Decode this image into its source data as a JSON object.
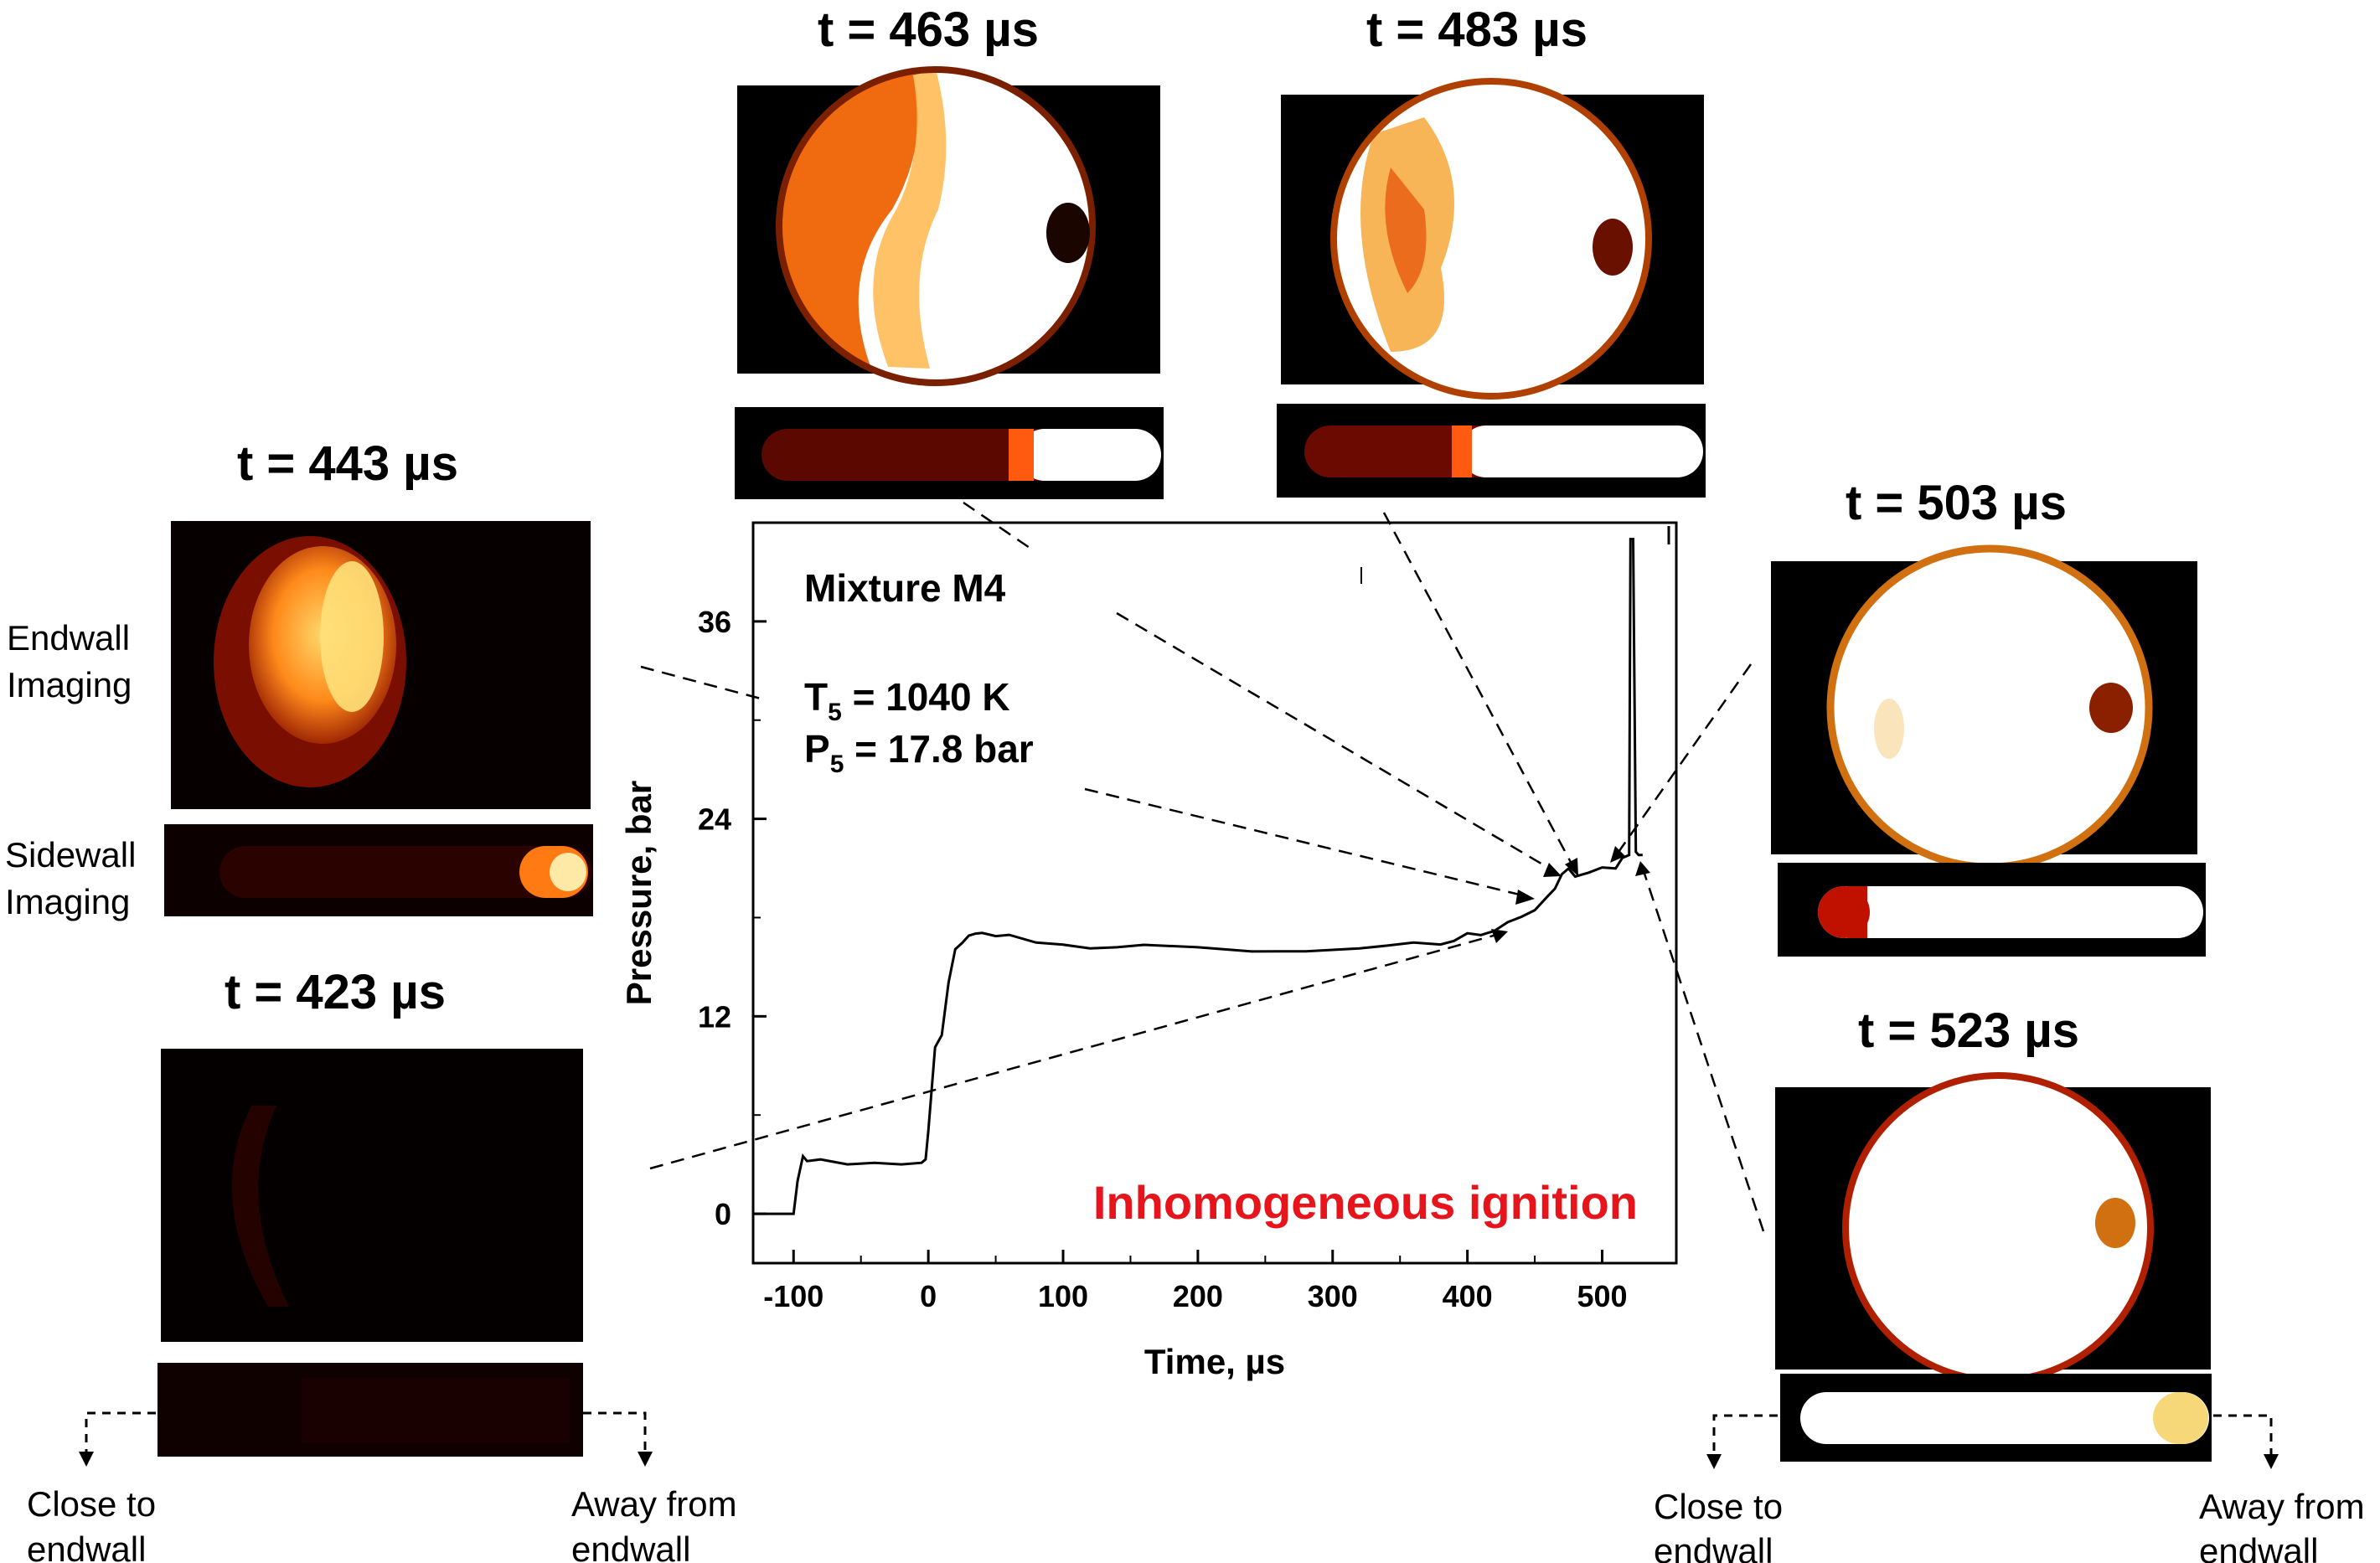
{
  "figure": {
    "panel_labels": {
      "endwall": "Endwall\nImaging",
      "sidewall": "Sidewall\nImaging"
    },
    "bottom_labels": {
      "close": "Close to\nendwall",
      "away": "Away from\nendwall"
    },
    "frames": [
      {
        "time_label": "t = 423 µs",
        "side_front_fraction": 0.0,
        "side_intensity": 0.05,
        "end_intensity": 0.04
      },
      {
        "time_label": "t = 443 µs",
        "side_front_fraction": 0.94,
        "side_intensity": 0.6,
        "end_intensity": 0.6
      },
      {
        "time_label": "t = 463 µs",
        "side_front_fraction": 0.64,
        "side_intensity": 1.0,
        "end_intensity": 0.85
      },
      {
        "time_label": "t = 483 µs",
        "side_front_fraction": 0.4,
        "side_intensity": 1.0,
        "end_intensity": 0.95
      },
      {
        "time_label": "t = 503 µs",
        "side_front_fraction": 0.12,
        "side_intensity": 1.0,
        "end_intensity": 1.0
      },
      {
        "time_label": "t = 523 µs",
        "side_front_fraction": 0.0,
        "side_intensity": 1.0,
        "end_intensity": 1.0
      }
    ]
  },
  "chart_data": {
    "type": "line",
    "title": "",
    "xlabel": "Time, µs",
    "ylabel": "Pressure, bar",
    "xlim": [
      -130,
      555
    ],
    "ylim": [
      -3,
      42
    ],
    "xticks": [
      -100,
      0,
      100,
      200,
      300,
      400,
      500
    ],
    "yticks": [
      0,
      12,
      24,
      36
    ],
    "grid": false,
    "annotations": {
      "mixture": "Mixture M4",
      "t5": "T5 = 1040 K",
      "p5": "P5 = 17.8 bar",
      "result": "Inhomogeneous ignition",
      "result_color": "#e8141b"
    },
    "series": [
      {
        "x": [
          -130,
          -100,
          -97,
          -93,
          -90,
          -80,
          -60,
          -40,
          -20,
          -5,
          -2,
          0,
          5,
          10,
          15,
          20,
          25,
          30,
          35,
          40,
          50,
          60,
          80,
          100,
          120,
          140,
          160,
          200,
          240,
          280,
          320,
          340,
          360,
          380,
          390,
          400,
          410,
          420,
          430,
          440,
          450,
          460,
          465,
          470,
          475,
          480,
          490,
          500,
          510,
          515,
          520,
          521,
          523,
          525,
          527,
          530
        ],
        "y": [
          0,
          0,
          2,
          3.5,
          3.2,
          3.3,
          3.0,
          3.1,
          3.0,
          3.1,
          3.3,
          5,
          10,
          11,
          14,
          16,
          16.6,
          16.8,
          17.0,
          17.2,
          16.9,
          16.8,
          16.6,
          16.3,
          16.1,
          16.3,
          16.2,
          16.1,
          16.0,
          16.1,
          16.2,
          16.3,
          16.4,
          16.5,
          16.6,
          16.9,
          17.0,
          17.3,
          17.6,
          18.0,
          18.6,
          19.3,
          19.9,
          20.5,
          21.0,
          20.6,
          20.8,
          20.9,
          21.0,
          21.5,
          21.8,
          41,
          41,
          22.0,
          21.8,
          21.8
        ]
      }
    ]
  }
}
